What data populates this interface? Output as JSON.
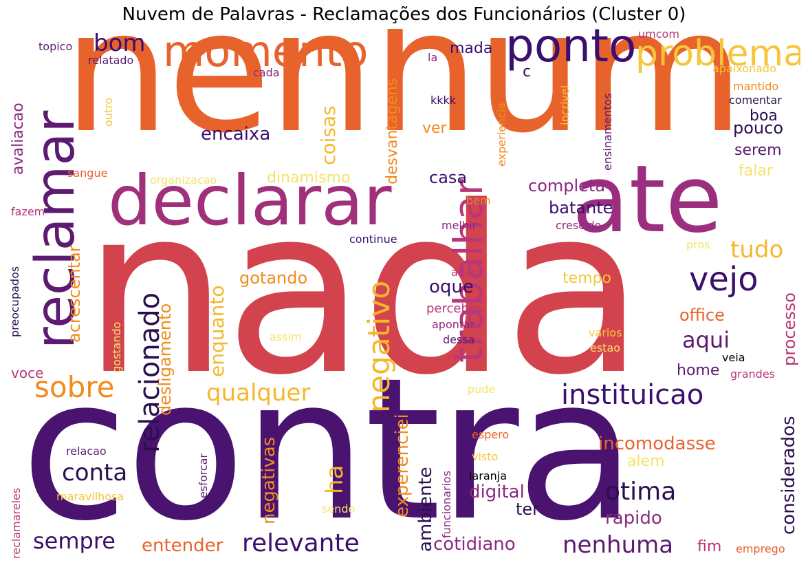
{
  "title": "Nuvem de Palavras - Reclamações dos Funcionários (Cluster 0)",
  "palette": {
    "dark_purple": "#3b0f6f",
    "violet": "#5c1a70",
    "magenta": "#8c2981",
    "rose": "#b73779",
    "red": "#d3434e",
    "orange": "#e8622c",
    "amber": "#f28b1c",
    "gold": "#f5b72e",
    "yellow": "#f4e36b"
  },
  "words": [
    {
      "text": "nada"
    },
    {
      "text": "contra"
    },
    {
      "text": "nenhum"
    },
    {
      "text": "declarar"
    },
    {
      "text": "ate"
    },
    {
      "text": "reclamar"
    },
    {
      "text": "momento"
    },
    {
      "text": "ponto"
    },
    {
      "text": "problema"
    },
    {
      "text": "trabalhar"
    },
    {
      "text": "negativo"
    },
    {
      "text": "instituicao"
    },
    {
      "text": "vejo"
    },
    {
      "text": "relacionado"
    },
    {
      "text": "sobre"
    },
    {
      "text": "qualquer"
    },
    {
      "text": "relevante"
    },
    {
      "text": "otima"
    },
    {
      "text": "nenhuma"
    },
    {
      "text": "conta"
    },
    {
      "text": "sempre"
    },
    {
      "text": "aqui"
    },
    {
      "text": "tudo"
    },
    {
      "text": "bom"
    },
    {
      "text": "encaixa"
    },
    {
      "text": "coisas"
    },
    {
      "text": "enquanto"
    },
    {
      "text": "considerados"
    },
    {
      "text": "ha"
    },
    {
      "text": "experenciei"
    },
    {
      "text": "ambiente"
    },
    {
      "text": "incomodasse"
    },
    {
      "text": "cotidiano"
    },
    {
      "text": "digital"
    },
    {
      "text": "rapido"
    },
    {
      "text": "entender"
    },
    {
      "text": "negativas"
    },
    {
      "text": "avaliacao"
    },
    {
      "text": "acrescentar"
    },
    {
      "text": "desligamento"
    },
    {
      "text": "gotando"
    },
    {
      "text": "dinamismo"
    },
    {
      "text": "completa"
    },
    {
      "text": "batante"
    },
    {
      "text": "casa"
    },
    {
      "text": "oque"
    },
    {
      "text": "office"
    },
    {
      "text": "processo"
    },
    {
      "text": "pouco"
    },
    {
      "text": "boa"
    },
    {
      "text": "serem"
    },
    {
      "text": "falar"
    },
    {
      "text": "tempo"
    },
    {
      "text": "home"
    },
    {
      "text": "ter"
    },
    {
      "text": "fim"
    },
    {
      "text": "mada"
    },
    {
      "text": "ver"
    },
    {
      "text": "c"
    },
    {
      "text": "voce"
    },
    {
      "text": "desvantagens"
    },
    {
      "text": "alem"
    },
    {
      "text": "laranja"
    },
    {
      "text": "topico"
    },
    {
      "text": "relatado"
    },
    {
      "text": "cada"
    },
    {
      "text": "la"
    },
    {
      "text": "umcom"
    },
    {
      "text": "apaixonado"
    },
    {
      "text": "mantido"
    },
    {
      "text": "comentar"
    },
    {
      "text": "kkkk"
    },
    {
      "text": "incrivel"
    },
    {
      "text": "experiencia"
    },
    {
      "text": "ensinamentos"
    },
    {
      "text": "outro"
    },
    {
      "text": "sangue"
    },
    {
      "text": "organizacao"
    },
    {
      "text": "fazem"
    },
    {
      "text": "preocupados"
    },
    {
      "text": "continue"
    },
    {
      "text": "melhir"
    },
    {
      "text": "bem"
    },
    {
      "text": "crescido"
    },
    {
      "text": "pros"
    },
    {
      "text": "adoro"
    },
    {
      "text": "perceber"
    },
    {
      "text": "apontar"
    },
    {
      "text": "dessa"
    },
    {
      "text": "assim"
    },
    {
      "text": "gostando"
    },
    {
      "text": "varios"
    },
    {
      "text": "estao"
    },
    {
      "text": "veia"
    },
    {
      "text": "grandes"
    },
    {
      "text": "pude"
    },
    {
      "text": "espero"
    },
    {
      "text": "visto"
    },
    {
      "text": "funcionarios"
    },
    {
      "text": "relacao"
    },
    {
      "text": "esforcar"
    },
    {
      "text": "maravilhosa"
    },
    {
      "text": "sendo"
    },
    {
      "text": "reclamareles"
    },
    {
      "text": "emprego"
    }
  ]
}
